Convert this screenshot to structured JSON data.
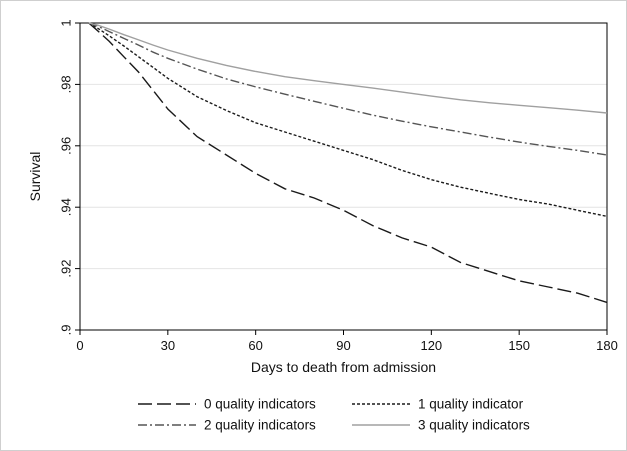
{
  "chart_data": {
    "type": "line",
    "title": "",
    "xlabel": "Days to death from admission",
    "ylabel": "Survival",
    "xlim": [
      0,
      180
    ],
    "ylim": [
      0.9,
      1.0
    ],
    "x_ticks": [
      0,
      30,
      60,
      90,
      120,
      150,
      180
    ],
    "x_tick_labels": [
      "0",
      "30",
      "60",
      "90",
      "120",
      "150",
      "180"
    ],
    "y_ticks": [
      0.9,
      0.92,
      0.94,
      0.96,
      0.98,
      1.0
    ],
    "y_tick_labels": [
      ".9",
      ".92",
      ".94",
      ".96",
      ".98",
      "1"
    ],
    "grid": "horizontal",
    "legend_position": "bottom",
    "x": [
      3,
      6,
      10,
      15,
      20,
      25,
      30,
      40,
      50,
      60,
      70,
      80,
      90,
      100,
      110,
      120,
      130,
      140,
      150,
      160,
      170,
      180
    ],
    "series": [
      {
        "name": "0 quality indicators",
        "color": "#1a1a1a",
        "style": "longdash",
        "values": [
          1.0,
          0.9975,
          0.994,
          0.989,
          0.984,
          0.978,
          0.972,
          0.963,
          0.957,
          0.951,
          0.946,
          0.943,
          0.939,
          0.934,
          0.93,
          0.927,
          0.922,
          0.919,
          0.916,
          0.914,
          0.912,
          0.909
        ]
      },
      {
        "name": "1 quality indicator",
        "color": "#1a1a1a",
        "style": "shortdash",
        "values": [
          1.0,
          0.9983,
          0.9958,
          0.9925,
          0.989,
          0.9855,
          0.982,
          0.976,
          0.9715,
          0.9675,
          0.9645,
          0.9615,
          0.9585,
          0.9555,
          0.952,
          0.949,
          0.9465,
          0.9445,
          0.9425,
          0.941,
          0.939,
          0.937
        ]
      },
      {
        "name": "2 quality indicators",
        "color": "#555555",
        "style": "dashdot",
        "values": [
          1.0,
          0.999,
          0.9972,
          0.995,
          0.9928,
          0.9905,
          0.9885,
          0.985,
          0.9818,
          0.9792,
          0.9768,
          0.9745,
          0.9722,
          0.97,
          0.968,
          0.9662,
          0.9645,
          0.9628,
          0.9612,
          0.9598,
          0.9585,
          0.957
        ]
      },
      {
        "name": "3 quality indicators",
        "color": "#a0a0a0",
        "style": "solid",
        "values": [
          1.0,
          0.9993,
          0.998,
          0.9962,
          0.9945,
          0.9928,
          0.9912,
          0.9885,
          0.9862,
          0.9842,
          0.9825,
          0.9812,
          0.98,
          0.9788,
          0.9775,
          0.9762,
          0.975,
          0.974,
          0.9732,
          0.9724,
          0.9716,
          0.9707
        ]
      }
    ]
  }
}
